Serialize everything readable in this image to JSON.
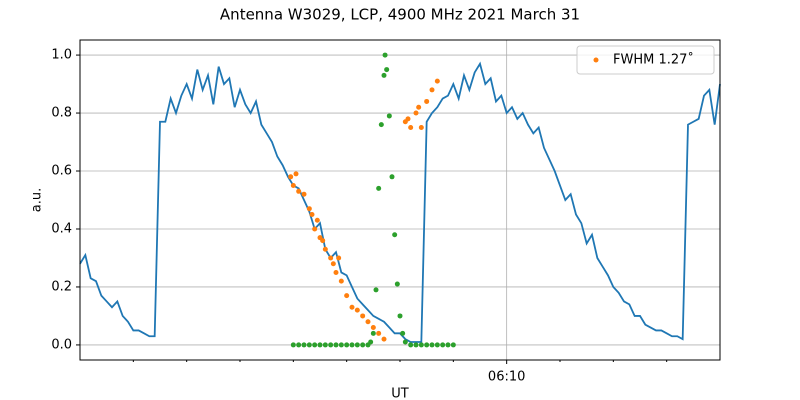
{
  "chart_data": {
    "type": "line",
    "title": "Antenna W3029, LCP, 4900 MHz 2021 March 31",
    "xlabel": "UT",
    "ylabel": "a.u.",
    "xlim": [
      362,
      374
    ],
    "xticks": [
      {
        "value": 370,
        "label": "06:10"
      }
    ],
    "xminorticks": [
      363,
      364,
      365,
      366,
      367,
      368,
      369,
      371,
      372,
      373
    ],
    "ylim": [
      -0.052,
      1.052
    ],
    "yticks": [
      {
        "value": 0,
        "label": "0.0"
      },
      0.2,
      0.4,
      0.6,
      0.8,
      {
        "value": 1,
        "label": "1.0"
      }
    ],
    "grid": true,
    "legend": "upper right",
    "series": [
      {
        "color": "#1f77b4",
        "kind": "line",
        "x": [
          362.0,
          362.1,
          362.2,
          362.3,
          362.4,
          362.5,
          362.6,
          362.7,
          362.8,
          362.9,
          363.0,
          363.1,
          363.2,
          363.3,
          363.4,
          363.5,
          363.6,
          363.7,
          363.8,
          363.9,
          364.0,
          364.1,
          364.2,
          364.3,
          364.4,
          364.5,
          364.6,
          364.7,
          364.8,
          364.9,
          365.0,
          365.1,
          365.2,
          365.3,
          365.4,
          365.5,
          365.6,
          365.7,
          365.8,
          365.9,
          366.0,
          366.1,
          366.2,
          366.3,
          366.4,
          366.5,
          366.6,
          366.7,
          366.8,
          366.9,
          367.0,
          367.1,
          367.2,
          367.3,
          367.4,
          367.5,
          367.6,
          367.7,
          367.8,
          367.9,
          368.0,
          368.1,
          368.2,
          368.3,
          368.4,
          368.5,
          368.6,
          368.7,
          368.8,
          368.9,
          369.0,
          369.1,
          369.2,
          369.3,
          369.4,
          369.5,
          369.6,
          369.7,
          369.8,
          369.9,
          370.0,
          370.1,
          370.2,
          370.3,
          370.4,
          370.5,
          370.6,
          370.7,
          370.8,
          370.9,
          371.0,
          371.1,
          371.2,
          371.3,
          371.4,
          371.5,
          371.6,
          371.7,
          371.8,
          371.9,
          372.0,
          372.1,
          372.2,
          372.3,
          372.4,
          372.5,
          372.6,
          372.7,
          372.8,
          372.9,
          373.0,
          373.1,
          373.2,
          373.3,
          373.4,
          373.5,
          373.6,
          373.7,
          373.8,
          373.9,
          374.0
        ],
        "values": [
          0.28,
          0.31,
          0.23,
          0.22,
          0.17,
          0.15,
          0.13,
          0.15,
          0.1,
          0.08,
          0.05,
          0.05,
          0.04,
          0.03,
          0.03,
          0.77,
          0.77,
          0.85,
          0.8,
          0.86,
          0.9,
          0.85,
          0.95,
          0.88,
          0.93,
          0.83,
          0.96,
          0.9,
          0.92,
          0.82,
          0.88,
          0.83,
          0.8,
          0.84,
          0.76,
          0.73,
          0.7,
          0.65,
          0.62,
          0.58,
          0.55,
          0.54,
          0.5,
          0.46,
          0.4,
          0.42,
          0.33,
          0.3,
          0.32,
          0.25,
          0.24,
          0.2,
          0.16,
          0.14,
          0.12,
          0.1,
          0.09,
          0.08,
          0.06,
          0.04,
          0.04,
          0.02,
          0.01,
          0.01,
          0.01,
          0.77,
          0.8,
          0.82,
          0.85,
          0.86,
          0.9,
          0.85,
          0.93,
          0.88,
          0.94,
          0.97,
          0.9,
          0.92,
          0.84,
          0.86,
          0.8,
          0.82,
          0.78,
          0.8,
          0.76,
          0.73,
          0.75,
          0.68,
          0.64,
          0.6,
          0.55,
          0.5,
          0.52,
          0.45,
          0.42,
          0.35,
          0.38,
          0.3,
          0.27,
          0.24,
          0.2,
          0.18,
          0.15,
          0.14,
          0.1,
          0.1,
          0.07,
          0.06,
          0.05,
          0.05,
          0.04,
          0.03,
          0.03,
          0.02,
          0.76,
          0.77,
          0.78,
          0.86,
          0.88,
          0.76,
          0.9
        ]
      },
      {
        "name": "FWHM 1.27˚",
        "color": "#ff7f0e",
        "kind": "points",
        "x": [
          365.95,
          366.0,
          366.05,
          366.1,
          366.2,
          366.3,
          366.35,
          366.4,
          366.45,
          366.5,
          366.55,
          366.6,
          366.7,
          366.75,
          366.8,
          366.85,
          366.9,
          367.0,
          367.1,
          367.2,
          367.3,
          367.4,
          367.5,
          367.6,
          367.7,
          368.1,
          368.15,
          368.2,
          368.3,
          368.35,
          368.4,
          368.5,
          368.6,
          368.7
        ],
        "values": [
          0.58,
          0.55,
          0.59,
          0.53,
          0.52,
          0.47,
          0.45,
          0.4,
          0.43,
          0.37,
          0.36,
          0.33,
          0.3,
          0.28,
          0.25,
          0.3,
          0.22,
          0.17,
          0.13,
          0.12,
          0.1,
          0.08,
          0.06,
          0.04,
          0.02,
          0.77,
          0.78,
          0.75,
          0.8,
          0.82,
          0.75,
          0.84,
          0.88,
          0.91
        ]
      },
      {
        "color": "#2ca02c",
        "kind": "points",
        "x": [
          366.0,
          366.1,
          366.2,
          366.3,
          366.4,
          366.5,
          366.6,
          366.7,
          366.8,
          366.9,
          367.0,
          367.1,
          367.2,
          367.3,
          367.4,
          367.45,
          367.5,
          367.55,
          367.6,
          367.65,
          367.7,
          367.72,
          367.75,
          367.8,
          367.85,
          367.9,
          367.95,
          368.0,
          368.05,
          368.1,
          368.2,
          368.3,
          368.4,
          368.5,
          368.6,
          368.7,
          368.8,
          368.9,
          369.0
        ],
        "values": [
          0,
          0,
          0,
          0,
          0,
          0,
          0,
          0,
          0,
          0,
          0,
          0,
          0,
          0,
          0,
          0.01,
          0.04,
          0.19,
          0.54,
          0.76,
          0.93,
          1.0,
          0.95,
          0.79,
          0.58,
          0.38,
          0.21,
          0.1,
          0.04,
          0.01,
          0,
          0,
          0,
          0,
          0,
          0,
          0,
          0,
          0
        ]
      }
    ]
  }
}
